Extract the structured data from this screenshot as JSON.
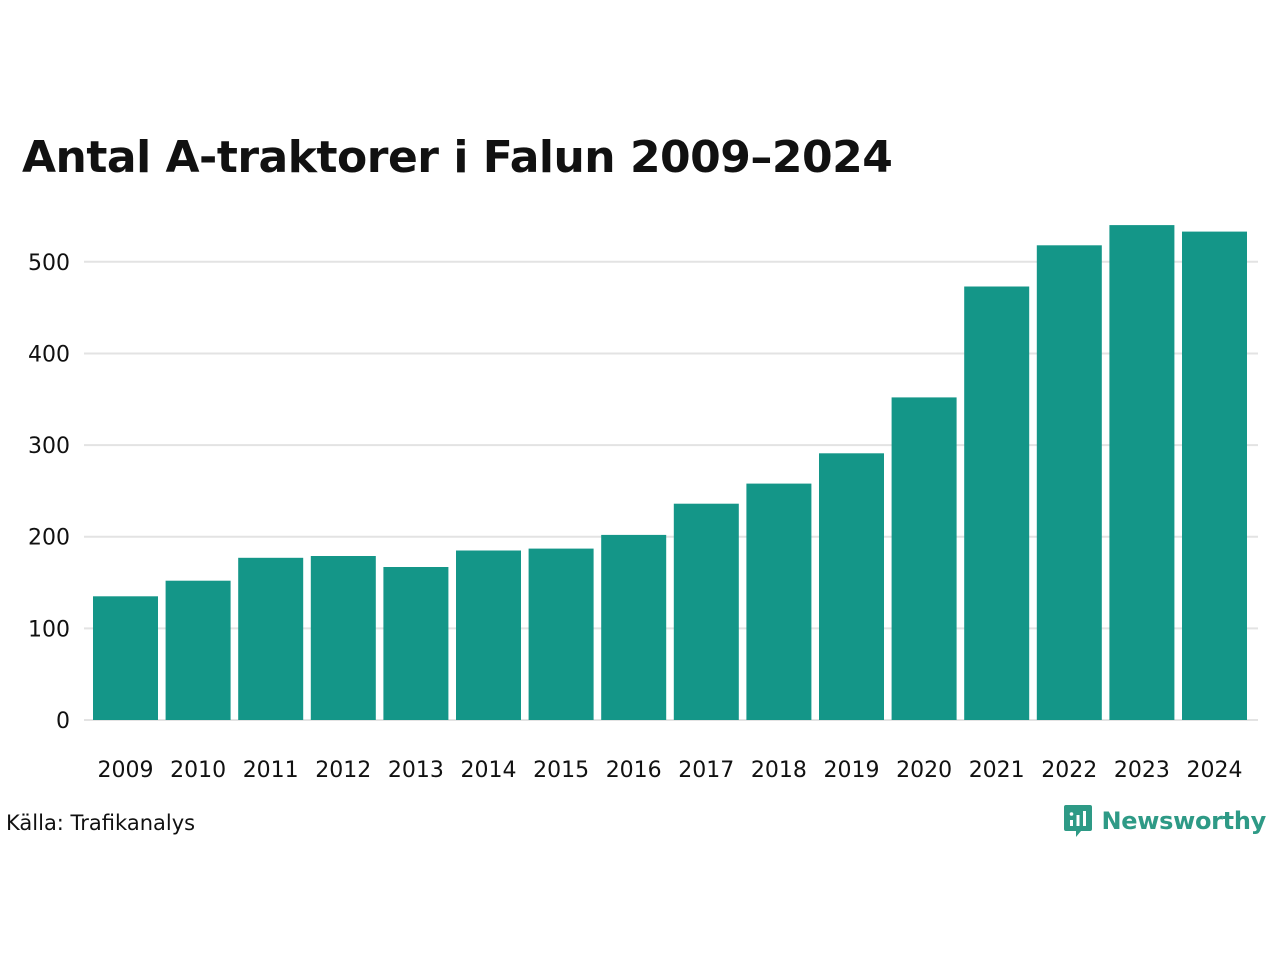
{
  "colors": {
    "bar": "#149688",
    "grid": "#e3e3e3",
    "brand": "#2e9a86",
    "text": "#111111"
  },
  "chart_data": {
    "type": "bar",
    "title": "Antal A-traktorer i Falun 2009–2024",
    "xlabel": "",
    "ylabel": "",
    "categories": [
      "2009",
      "2010",
      "2011",
      "2012",
      "2013",
      "2014",
      "2015",
      "2016",
      "2017",
      "2018",
      "2019",
      "2020",
      "2021",
      "2022",
      "2023",
      "2024"
    ],
    "values": [
      135,
      152,
      177,
      179,
      167,
      185,
      187,
      202,
      236,
      258,
      291,
      352,
      473,
      518,
      540,
      533
    ],
    "ylim": [
      0,
      550
    ],
    "yticks": [
      0,
      100,
      200,
      300,
      400,
      500
    ],
    "grid": true,
    "legend": "none"
  },
  "footer": {
    "source": "Källa: Trafikanalys",
    "brand": "Newsworthy",
    "brand_icon": "newsworthy-logo-icon"
  }
}
